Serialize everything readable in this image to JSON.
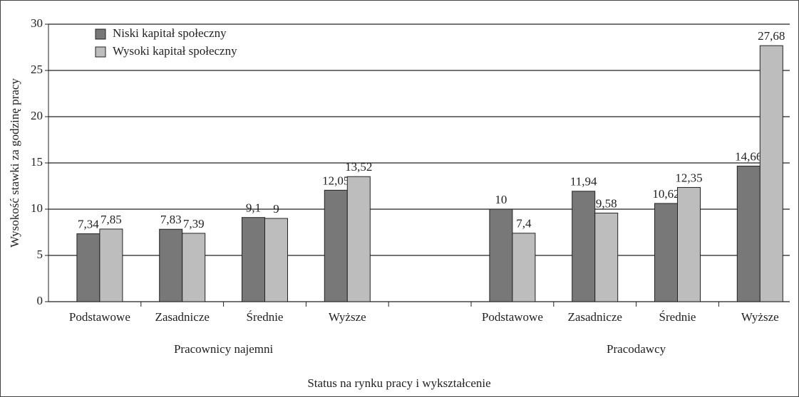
{
  "chart_data": {
    "type": "bar",
    "y_label": "Wysokość stawki za godzinę pracy",
    "x_label": "Status na rynku pracy i wykształcenie",
    "groups": [
      "Pracownicy najemni",
      "Pracodawcy"
    ],
    "categories": [
      "Podstawowe",
      "Zasadnicze",
      "Średnie",
      "Wyższe",
      null,
      "Podstawowe",
      "Zasadnicze",
      "Średnie",
      "Wyższe"
    ],
    "series": [
      {
        "name": "Niski kapitał społeczny",
        "color": "#787878",
        "values": [
          7.34,
          7.83,
          9.1,
          12.05,
          null,
          10,
          11.94,
          10.62,
          14.66
        ],
        "value_labels": [
          "7,34",
          "7,83",
          "9,1",
          "12,05",
          null,
          "10",
          "11,94",
          "10,62",
          "14,66"
        ]
      },
      {
        "name": "Wysoki kapitał społeczny",
        "color": "#bdbdbd",
        "values": [
          7.85,
          7.39,
          9,
          13.52,
          null,
          7.4,
          9.58,
          12.35,
          27.68
        ],
        "value_labels": [
          "7,85",
          "7,39",
          "9",
          "13,52",
          null,
          "7,4",
          "9,58",
          "12,35",
          "27,68"
        ]
      }
    ],
    "ylim": [
      0,
      30
    ],
    "yticks": [
      0,
      5,
      10,
      15,
      20,
      25,
      30
    ],
    "grid": true
  }
}
